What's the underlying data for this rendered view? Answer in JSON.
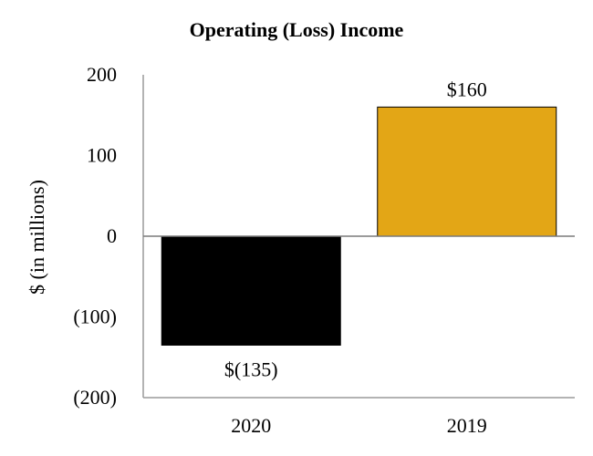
{
  "chart_data": {
    "type": "bar",
    "title": "Operating (Loss) Income",
    "ylabel": "$ (in millions)",
    "xlabel": "",
    "categories": [
      "2020",
      "2019"
    ],
    "values": [
      -135,
      160
    ],
    "data_labels": [
      "$(135)",
      "$160"
    ],
    "bar_colors": [
      "#000000",
      "#E3A616"
    ],
    "ylim": [
      -200,
      200
    ],
    "yticks": [
      200,
      100,
      0,
      -100,
      -200
    ],
    "ytick_labels": [
      "200",
      "100",
      "0",
      "(100)",
      "(200)"
    ],
    "grid": false,
    "legend": "none"
  }
}
